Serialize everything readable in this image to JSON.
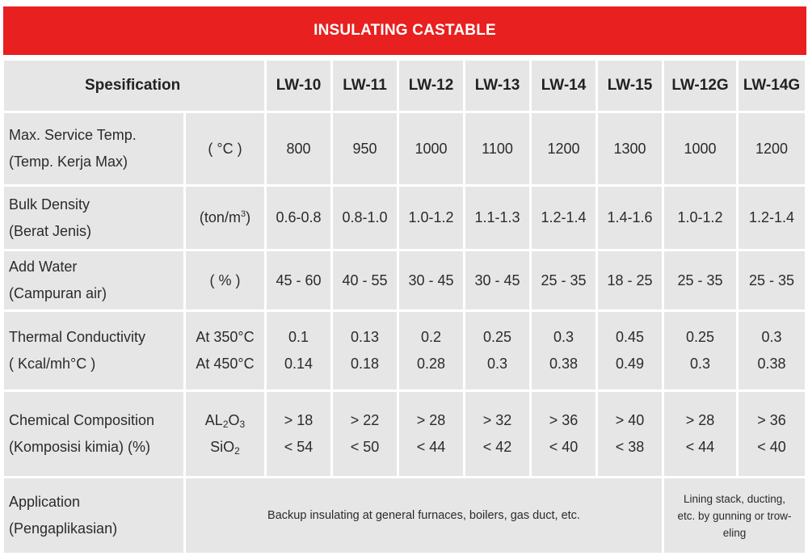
{
  "title": "INSULATING CASTABLE",
  "header": {
    "spec_label": "Spesification",
    "grades": [
      "LW-10",
      "LW-11",
      "LW-12",
      "LW-13",
      "LW-14",
      "LW-15",
      "LW-12G",
      "LW-14G"
    ]
  },
  "rows": {
    "max_temp": {
      "name_line1": "Max. Service Temp.",
      "name_line2": "(Temp. Kerja Max)",
      "unit": "( °C )",
      "values": [
        "800",
        "950",
        "1000",
        "1100",
        "1200",
        "1300",
        "1000",
        "1200"
      ]
    },
    "bulk_density": {
      "name_line1": "Bulk Density",
      "name_line2": "(Berat Jenis)",
      "unit_base": "(ton/m",
      "unit_sup": "3",
      "unit_close": ")",
      "values": [
        "0.6-0.8",
        "0.8-1.0",
        "1.0-1.2",
        "1.1-1.3",
        "1.2-1.4",
        "1.4-1.6",
        "1.0-1.2",
        "1.2-1.4"
      ]
    },
    "add_water": {
      "name_line1": "Add Water",
      "name_line2": "(Campuran air)",
      "unit": "( % )",
      "values": [
        "45 - 60",
        "40 - 55",
        "30 - 45",
        "30 - 45",
        "25 - 35",
        "18 - 25",
        "25 - 35",
        "25 - 35"
      ]
    },
    "thermal": {
      "name_line1": "Thermal Conductivity",
      "name_line2": "( Kcal/mh°C )",
      "unit_line1": "At 350°C",
      "unit_line2": "At 450°C",
      "values_350": [
        "0.1",
        "0.13",
        "0.2",
        "0.25",
        "0.3",
        "0.45",
        "0.25",
        "0.3"
      ],
      "values_450": [
        "0.14",
        "0.18",
        "0.28",
        "0.3",
        "0.38",
        "0.49",
        "0.3",
        "0.38"
      ]
    },
    "chemical": {
      "name_line1": "Chemical Composition",
      "name_line2": "(Komposisi kimia) (%)",
      "al_base": "AL",
      "al_sub1": "2",
      "al_mid": "O",
      "al_sub2": "3",
      "si_base": "SiO",
      "si_sub": "2",
      "values_al2o3": [
        "> 18",
        "> 22",
        "> 28",
        "> 32",
        "> 36",
        "> 40",
        "> 28",
        "> 36"
      ],
      "values_sio2": [
        "< 54",
        "< 50",
        "< 44",
        "< 42",
        "< 40",
        "< 38",
        "< 44",
        "< 40"
      ]
    },
    "application": {
      "name_line1": "Application",
      "name_line2": "(Pengaplikasian)",
      "general": "Backup insulating at general furnaces, boilers, gas duct, etc.",
      "special_line1": "Lining stack, ducting,",
      "special_line2": "etc. by gunning or trow-",
      "special_line3": "eling"
    }
  }
}
